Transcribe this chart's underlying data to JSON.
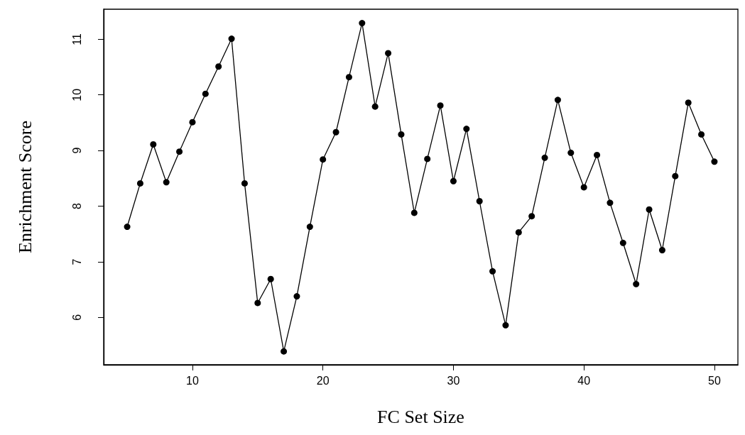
{
  "chart_data": {
    "type": "line",
    "xlabel": "FC Set Size",
    "ylabel": "Enrichment Score",
    "x": [
      5,
      6,
      7,
      8,
      9,
      10,
      11,
      12,
      13,
      14,
      15,
      16,
      17,
      18,
      19,
      20,
      21,
      22,
      23,
      24,
      25,
      26,
      27,
      28,
      29,
      30,
      31,
      32,
      33,
      34,
      35,
      36,
      37,
      38,
      39,
      40,
      41,
      42,
      43,
      44,
      45,
      46,
      47,
      48,
      49,
      50
    ],
    "series": [
      {
        "color": "#000000",
        "values": [
          7.63,
          8.41,
          9.11,
          8.43,
          8.98,
          9.51,
          10.02,
          10.51,
          11.01,
          8.41,
          6.26,
          6.69,
          5.39,
          6.38,
          7.63,
          8.84,
          9.33,
          10.32,
          11.29,
          9.79,
          10.75,
          9.29,
          7.88,
          8.85,
          9.81,
          8.45,
          9.39,
          8.09,
          6.83,
          5.86,
          7.53,
          7.82,
          8.87,
          9.91,
          8.96,
          8.34,
          8.92,
          8.06,
          7.34,
          6.6,
          7.94,
          7.21,
          8.54,
          9.86,
          9.29,
          8.8
        ]
      }
    ],
    "xlim": [
      3.2,
      51.8
    ],
    "ylim": [
      5.15,
      11.54
    ],
    "xticks": [
      10,
      20,
      30,
      40,
      50
    ],
    "yticks": [
      6,
      7,
      8,
      9,
      10,
      11
    ],
    "marker": "circle",
    "line_style": "solid",
    "grid": false
  }
}
